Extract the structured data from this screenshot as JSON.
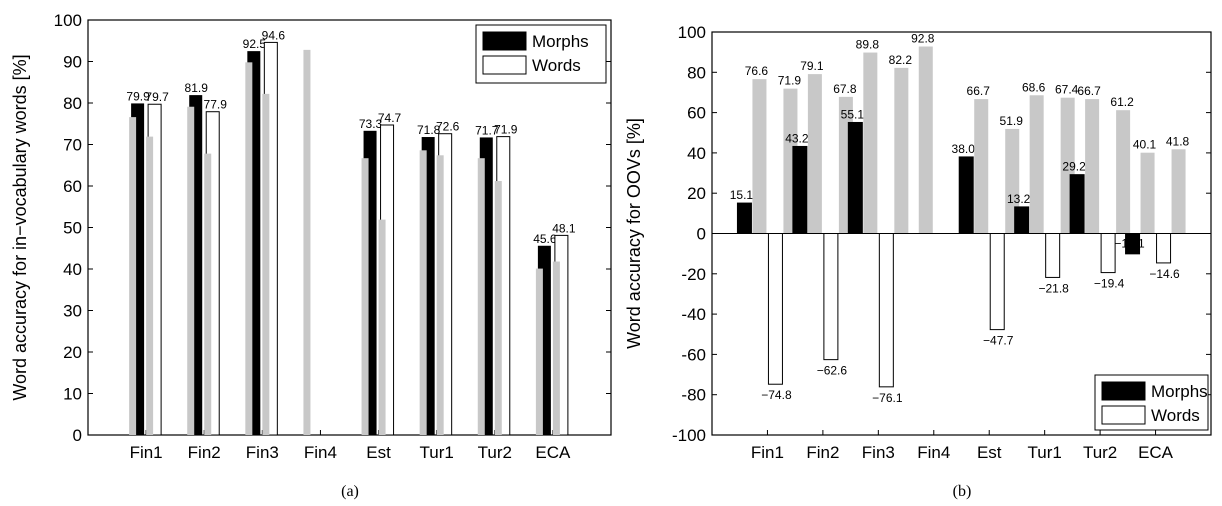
{
  "chart_data": [
    {
      "type": "bar",
      "caption": "(a)",
      "ylabel": "Word accuracy for in−vocabulary words [%]",
      "xlabel": "",
      "ylim": [
        0,
        100
      ],
      "yticks": [
        0,
        10,
        20,
        30,
        40,
        50,
        60,
        70,
        80,
        90,
        100
      ],
      "categories": [
        "Fin1",
        "Fin2",
        "Fin3",
        "Fin4",
        "Est",
        "Tur1",
        "Tur2",
        "ECA"
      ],
      "legend": {
        "position": "top-right",
        "entries": [
          "Morphs",
          "Words"
        ]
      },
      "grid": false,
      "series": [
        {
          "name": "Morphs",
          "color": "#000000",
          "values": [
            79.9,
            81.9,
            92.5,
            null,
            73.3,
            71.8,
            71.7,
            45.6
          ]
        },
        {
          "name": "Words",
          "color": "#ffffff",
          "values": [
            79.7,
            77.9,
            94.6,
            null,
            74.7,
            72.6,
            71.9,
            48.1
          ]
        }
      ],
      "gray_bars": [
        [
          76.6,
          71.9
        ],
        [
          79.1,
          67.8
        ],
        [
          89.8,
          82.2
        ],
        [
          92.8,
          null
        ],
        [
          66.7,
          51.9
        ],
        [
          68.6,
          67.4
        ],
        [
          66.7,
          61.2
        ],
        [
          40.1,
          41.8
        ]
      ],
      "data_labels": {
        "Morphs": [
          "79.9",
          "81.9",
          "92.5",
          "",
          "73.3",
          "71.8",
          "71.7",
          "45.6"
        ],
        "Words": [
          "79.7",
          "77.9",
          "94.6",
          "",
          "74.7",
          "72.6",
          "71.9",
          "48.1"
        ]
      }
    },
    {
      "type": "bar",
      "caption": "(b)",
      "ylabel": "Word accuracy for OOVs [%]",
      "xlabel": "",
      "ylim": [
        -100,
        100
      ],
      "yticks": [
        -100,
        -80,
        -60,
        -40,
        -20,
        0,
        20,
        40,
        60,
        80,
        100
      ],
      "categories": [
        "Fin1",
        "Fin2",
        "Fin3",
        "Fin4",
        "Est",
        "Tur1",
        "Tur2",
        "ECA"
      ],
      "legend": {
        "position": "bottom-right",
        "entries": [
          "Morphs",
          "Words"
        ]
      },
      "grid": false,
      "series": [
        {
          "name": "Morphs",
          "color": "#000000",
          "values": [
            15.1,
            43.2,
            55.1,
            null,
            38.0,
            13.2,
            29.2,
            -10.1
          ]
        },
        {
          "name": "Words",
          "color": "#ffffff",
          "values": [
            -74.8,
            -62.6,
            -76.1,
            null,
            -47.7,
            -21.8,
            -19.4,
            -14.6
          ]
        }
      ],
      "gray_bars": [
        [
          76.6,
          71.9
        ],
        [
          79.1,
          67.8
        ],
        [
          89.8,
          82.2
        ],
        [
          92.8,
          null
        ],
        [
          66.7,
          51.9
        ],
        [
          68.6,
          67.4
        ],
        [
          66.7,
          61.2
        ],
        [
          40.1,
          41.8
        ]
      ],
      "gray_labels": [
        [
          "76.6",
          "71.9"
        ],
        [
          "79.1",
          "67.8"
        ],
        [
          "89.8",
          "82.2"
        ],
        [
          "92.8",
          ""
        ],
        [
          "66.7",
          "51.9"
        ],
        [
          "68.6",
          "67.4"
        ],
        [
          "66.7",
          "61.2"
        ],
        [
          "40.1",
          "41.8"
        ]
      ],
      "data_labels": {
        "Morphs": [
          "15.1",
          "43.2",
          "55.1",
          "",
          "38.0",
          "13.2",
          "29.2",
          "−10.1"
        ],
        "Words": [
          "−74.8",
          "−62.6",
          "−76.1",
          "",
          "−47.7",
          "−21.8",
          "−19.4",
          "−14.6"
        ]
      }
    }
  ]
}
